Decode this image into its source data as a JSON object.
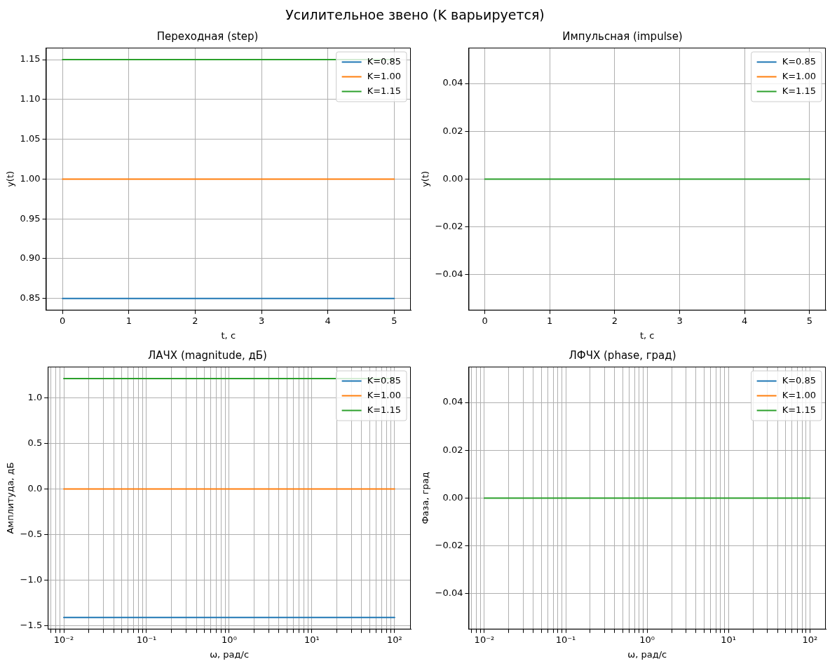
{
  "chart_data": [
    {
      "type": "other",
      "title": "Усилительное звено (K варьируется)"
    },
    {
      "type": "line",
      "title": "Переходная (step)",
      "xlabel": "t, с",
      "ylabel": "y(t)",
      "x": [
        0,
        5
      ],
      "xlim": [
        -0.25,
        5.25
      ],
      "xticks": [
        0,
        1,
        2,
        3,
        4,
        5
      ],
      "ylim": [
        0.835,
        1.165
      ],
      "yticks": [
        {
          "value": 0.85,
          "label": "0.85"
        },
        {
          "value": 0.9,
          "label": "0.90"
        },
        {
          "value": 0.95,
          "label": "0.95"
        },
        {
          "value": 1.0,
          "label": "1.00"
        },
        {
          "value": 1.05,
          "label": "1.05"
        },
        {
          "value": 1.1,
          "label": "1.10"
        },
        {
          "value": 1.15,
          "label": "1.15"
        }
      ],
      "grid": true,
      "legend": "top right",
      "marker": "none",
      "line_style": "solid",
      "series": [
        {
          "name": "K=0.85",
          "color": "#1f77b4",
          "values": [
            0.85,
            0.85
          ]
        },
        {
          "name": "K=1.00",
          "color": "#ff7f0e",
          "values": [
            1.0,
            1.0
          ]
        },
        {
          "name": "K=1.15",
          "color": "#2ca02c",
          "values": [
            1.15,
            1.15
          ]
        }
      ]
    },
    {
      "type": "line",
      "title": "Импульсная (impulse)",
      "xlabel": "t, с",
      "ylabel": "y(t)",
      "x": [
        0,
        5
      ],
      "xlim": [
        -0.25,
        5.25
      ],
      "xticks": [
        0,
        1,
        2,
        3,
        4,
        5
      ],
      "ylim": [
        -0.055,
        0.055
      ],
      "yticks": [
        {
          "value": -0.04,
          "label": "−0.04"
        },
        {
          "value": -0.02,
          "label": "−0.02"
        },
        {
          "value": 0,
          "label": "0.00"
        },
        {
          "value": 0.02,
          "label": "0.02"
        },
        {
          "value": 0.04,
          "label": "0.04"
        }
      ],
      "grid": true,
      "legend": "top right",
      "marker": "none",
      "line_style": "solid",
      "series": [
        {
          "name": "K=0.85",
          "color": "#1f77b4",
          "values": [
            null,
            null
          ]
        },
        {
          "name": "K=1.00",
          "color": "#ff7f0e",
          "values": [
            null,
            null
          ]
        },
        {
          "name": "K=1.15",
          "color": "#2ca02c",
          "values": [
            0,
            0
          ]
        }
      ]
    },
    {
      "type": "line",
      "title": "ЛАЧХ (magnitude, дБ)",
      "xlabel": "ω, рад/с",
      "ylabel": "Амплитуда, дБ",
      "log": "x",
      "x": [
        0.01,
        100
      ],
      "xlim": [
        0.0064,
        157
      ],
      "xticks": [
        {
          "value": 0.007,
          "label": null
        },
        {
          "value": 0.008,
          "label": null
        },
        {
          "value": 0.009,
          "label": null
        },
        {
          "value": 0.01,
          "label": "10⁻²"
        },
        {
          "value": 0.02,
          "label": null
        },
        {
          "value": 0.03,
          "label": null
        },
        {
          "value": 0.04,
          "label": null
        },
        {
          "value": 0.05,
          "label": null
        },
        {
          "value": 0.06,
          "label": null
        },
        {
          "value": 0.07,
          "label": null
        },
        {
          "value": 0.08,
          "label": null
        },
        {
          "value": 0.09,
          "label": null
        },
        {
          "value": 0.1,
          "label": "10⁻¹"
        },
        {
          "value": 0.2,
          "label": null
        },
        {
          "value": 0.3,
          "label": null
        },
        {
          "value": 0.4,
          "label": null
        },
        {
          "value": 0.5,
          "label": null
        },
        {
          "value": 0.6,
          "label": null
        },
        {
          "value": 0.7,
          "label": null
        },
        {
          "value": 0.8,
          "label": null
        },
        {
          "value": 0.9,
          "label": null
        },
        {
          "value": 1,
          "label": "10⁰"
        },
        {
          "value": 2,
          "label": null
        },
        {
          "value": 3,
          "label": null
        },
        {
          "value": 4,
          "label": null
        },
        {
          "value": 5,
          "label": null
        },
        {
          "value": 6,
          "label": null
        },
        {
          "value": 7,
          "label": null
        },
        {
          "value": 8,
          "label": null
        },
        {
          "value": 9,
          "label": null
        },
        {
          "value": 10,
          "label": "10¹"
        },
        {
          "value": 20,
          "label": null
        },
        {
          "value": 30,
          "label": null
        },
        {
          "value": 40,
          "label": null
        },
        {
          "value": 50,
          "label": null
        },
        {
          "value": 60,
          "label": null
        },
        {
          "value": 70,
          "label": null
        },
        {
          "value": 80,
          "label": null
        },
        {
          "value": 90,
          "label": null
        },
        {
          "value": 100,
          "label": "10²"
        }
      ],
      "ylim": [
        -1.543,
        1.345
      ],
      "yticks": [
        {
          "value": -1.5,
          "label": "−1.5"
        },
        {
          "value": -1.0,
          "label": "−1.0"
        },
        {
          "value": -0.5,
          "label": "−0.5"
        },
        {
          "value": 0,
          "label": "0.0"
        },
        {
          "value": 0.5,
          "label": "0.5"
        },
        {
          "value": 1.0,
          "label": "1.0"
        }
      ],
      "grid": true,
      "legend": "top right",
      "marker": "none",
      "line_style": "solid",
      "series": [
        {
          "name": "K=0.85",
          "color": "#1f77b4",
          "values": [
            -1.412,
            -1.412
          ]
        },
        {
          "name": "K=1.00",
          "color": "#ff7f0e",
          "values": [
            0,
            0
          ]
        },
        {
          "name": "K=1.15",
          "color": "#2ca02c",
          "values": [
            1.214,
            1.214
          ]
        }
      ]
    },
    {
      "type": "line",
      "title": "ЛФЧХ (phase, град)",
      "xlabel": "ω, рад/с",
      "ylabel": "Фаза, град",
      "log": "x",
      "x": [
        0.01,
        100
      ],
      "xlim": [
        0.0064,
        157
      ],
      "xticks": [
        {
          "value": 0.007,
          "label": null
        },
        {
          "value": 0.008,
          "label": null
        },
        {
          "value": 0.009,
          "label": null
        },
        {
          "value": 0.01,
          "label": "10⁻²"
        },
        {
          "value": 0.02,
          "label": null
        },
        {
          "value": 0.03,
          "label": null
        },
        {
          "value": 0.04,
          "label": null
        },
        {
          "value": 0.05,
          "label": null
        },
        {
          "value": 0.06,
          "label": null
        },
        {
          "value": 0.07,
          "label": null
        },
        {
          "value": 0.08,
          "label": null
        },
        {
          "value": 0.09,
          "label": null
        },
        {
          "value": 0.1,
          "label": "10⁻¹"
        },
        {
          "value": 0.2,
          "label": null
        },
        {
          "value": 0.3,
          "label": null
        },
        {
          "value": 0.4,
          "label": null
        },
        {
          "value": 0.5,
          "label": null
        },
        {
          "value": 0.6,
          "label": null
        },
        {
          "value": 0.7,
          "label": null
        },
        {
          "value": 0.8,
          "label": null
        },
        {
          "value": 0.9,
          "label": null
        },
        {
          "value": 1,
          "label": "10⁰"
        },
        {
          "value": 2,
          "label": null
        },
        {
          "value": 3,
          "label": null
        },
        {
          "value": 4,
          "label": null
        },
        {
          "value": 5,
          "label": null
        },
        {
          "value": 6,
          "label": null
        },
        {
          "value": 7,
          "label": null
        },
        {
          "value": 8,
          "label": null
        },
        {
          "value": 9,
          "label": null
        },
        {
          "value": 10,
          "label": "10¹"
        },
        {
          "value": 20,
          "label": null
        },
        {
          "value": 30,
          "label": null
        },
        {
          "value": 40,
          "label": null
        },
        {
          "value": 50,
          "label": null
        },
        {
          "value": 60,
          "label": null
        },
        {
          "value": 70,
          "label": null
        },
        {
          "value": 80,
          "label": null
        },
        {
          "value": 90,
          "label": null
        },
        {
          "value": 100,
          "label": "10²"
        }
      ],
      "ylim": [
        -0.055,
        0.055
      ],
      "yticks": [
        {
          "value": -0.04,
          "label": "−0.04"
        },
        {
          "value": -0.02,
          "label": "−0.02"
        },
        {
          "value": 0,
          "label": "0.00"
        },
        {
          "value": 0.02,
          "label": "0.02"
        },
        {
          "value": 0.04,
          "label": "0.04"
        }
      ],
      "grid": true,
      "legend": "top right",
      "marker": "none",
      "line_style": "solid",
      "series": [
        {
          "name": "K=0.85",
          "color": "#1f77b4",
          "values": [
            null,
            null
          ]
        },
        {
          "name": "K=1.00",
          "color": "#ff7f0e",
          "values": [
            null,
            null
          ]
        },
        {
          "name": "K=1.15",
          "color": "#2ca02c",
          "values": [
            0,
            0
          ]
        }
      ]
    }
  ]
}
